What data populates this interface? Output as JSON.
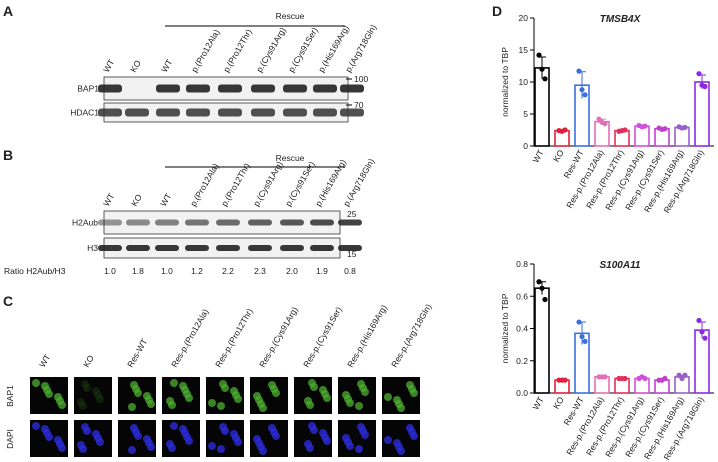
{
  "panel_a": {
    "letter": "A",
    "rescue": "Rescue",
    "lanes": [
      "WT",
      "KO",
      "WT",
      "p.(Pro12Ala)",
      "p.(Pro12Thr)",
      "p.(Cys91Arg)",
      "p.(Cys91Ser)",
      "p.(His169Arg)",
      "p.(Arg718Gln)"
    ],
    "rows": [
      "BAP1",
      "HDAC1"
    ],
    "markers": [
      "100",
      "70"
    ]
  },
  "panel_b": {
    "letter": "B",
    "rescue": "Rescue",
    "lanes": [
      "WT",
      "KO",
      "WT",
      "p.(Pro12Ala)",
      "p.(Pro12Thr)",
      "p.(Cys91Arg)",
      "p.(Cys91Ser)",
      "p.(His169Arg)",
      "p.(Arg718Gln)"
    ],
    "rows": [
      "H2Aub",
      "H3"
    ],
    "markers": [
      "25",
      "15"
    ],
    "ratio_label": "Ratio H2Aub/H3",
    "ratios": [
      "1.0",
      "1.8",
      "1.0",
      "1.2",
      "2.2",
      "2.3",
      "2.0",
      "1.9",
      "0.8"
    ]
  },
  "panel_c": {
    "letter": "C",
    "columns": [
      "WT",
      "KO",
      "Res-WT",
      "Res-p.(Pro12Ala)",
      "Res-p.(Pro12Thr)",
      "Res-p.(Cys91Arg)",
      "Res-p.(Cys91Ser)",
      "Res-p.(His169Arg)",
      "Res-p.(Arg718Gln)"
    ],
    "rows": [
      "BAP1",
      "DAPI"
    ]
  },
  "panel_d": {
    "letter": "D"
  },
  "chart_data": [
    {
      "type": "bar",
      "title": "TMSB4X",
      "y_label": "normalized to TBP",
      "categories": [
        "WT",
        "KO",
        "Res-WT",
        "Res-p.(Pro12Ala)",
        "Res-p.(Pro12Thr)",
        "Res-p.(Cys91Arg)",
        "Res-p.(Cys91Ser)",
        "Res-p.(His169Arg)",
        "Res-p.(Arg718Gln)"
      ],
      "values": [
        12.2,
        2.4,
        9.5,
        3.8,
        2.4,
        3.1,
        2.7,
        2.9,
        10.0
      ],
      "errors": [
        1.7,
        0.1,
        2.1,
        0.4,
        0.1,
        0.1,
        0.1,
        0.1,
        1.1
      ],
      "replicates": [
        [
          14.2,
          12.0,
          10.5
        ],
        [
          2.4,
          2.3,
          2.5
        ],
        [
          11.7,
          8.8,
          8.0
        ],
        [
          4.2,
          3.7,
          3.5
        ],
        [
          2.3,
          2.4,
          2.5
        ],
        [
          3.2,
          3.0,
          3.1
        ],
        [
          2.8,
          2.6,
          2.7
        ],
        [
          3.0,
          2.8,
          2.9
        ],
        [
          11.3,
          9.5,
          9.3
        ]
      ],
      "colors": [
        "#000000",
        "#e0203c",
        "#3b6fe0",
        "#e070b8",
        "#e0305a",
        "#d050d8",
        "#c040d0",
        "#9a60c8",
        "#8a2be2"
      ],
      "ylim": [
        0,
        20
      ],
      "yticks": [
        0,
        5,
        10,
        15,
        20
      ]
    },
    {
      "type": "bar",
      "title": "S100A11",
      "y_label": "normalized to TBP",
      "categories": [
        "WT",
        "KO",
        "Res-WT",
        "Res-p.(Pro12Ala)",
        "Res-p.(Pro12Thr)",
        "Res-p.(Cys91Arg)",
        "Res-p.(Cys91Ser)",
        "Res-p.(His169Arg)",
        "Res-p.(Arg718Gln)"
      ],
      "values": [
        0.65,
        0.08,
        0.37,
        0.1,
        0.09,
        0.09,
        0.08,
        0.1,
        0.39
      ],
      "errors": [
        0.04,
        0.005,
        0.07,
        0.003,
        0.005,
        0.005,
        0.005,
        0.01,
        0.05
      ],
      "replicates": [
        [
          0.69,
          0.65,
          0.58
        ],
        [
          0.08,
          0.08,
          0.08
        ],
        [
          0.44,
          0.35,
          0.32
        ],
        [
          0.1,
          0.1,
          0.1
        ],
        [
          0.09,
          0.09,
          0.09
        ],
        [
          0.09,
          0.1,
          0.09
        ],
        [
          0.08,
          0.08,
          0.09
        ],
        [
          0.11,
          0.09,
          0.11
        ],
        [
          0.45,
          0.38,
          0.34
        ]
      ],
      "colors": [
        "#000000",
        "#e0203c",
        "#3b6fe0",
        "#e070b8",
        "#e0305a",
        "#d050d8",
        "#c040d0",
        "#9a60c8",
        "#8a2be2"
      ],
      "ylim": [
        0,
        0.8
      ],
      "yticks": [
        {
          "value": 0,
          "label": "0.0"
        },
        0.2,
        0.4,
        0.6,
        0.8
      ]
    }
  ]
}
